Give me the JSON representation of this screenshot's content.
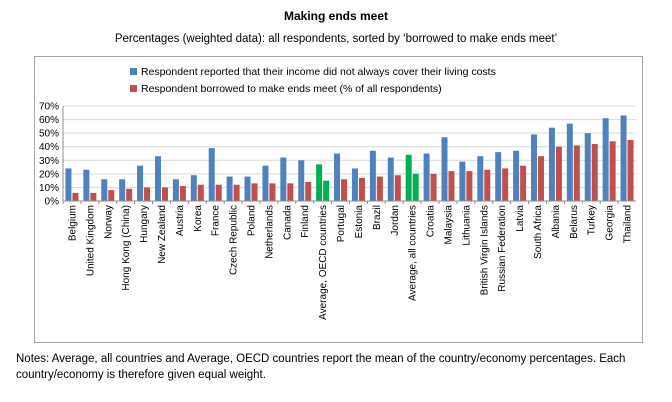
{
  "chart_data": {
    "type": "bar",
    "title": "Making ends meet",
    "subtitle": "Percentages (weighted data): all respondents, sorted by ‘borrowed to make ends meet’",
    "categories": [
      "Belgium",
      "United Kingdom",
      "Norway",
      "Hong Kong (China)",
      "Hungary",
      "New Zealand",
      "Austria",
      "Korea",
      "France",
      "Czech Republic",
      "Poland",
      "Netherlands",
      "Canada",
      "Finland",
      "Average, OECD countries",
      "Portugal",
      "Estonia",
      "Brazil",
      "Jordan",
      "Average, all countries",
      "Croatia",
      "Malaysia",
      "Lithuania",
      "British Virgin Islands",
      "Russian Federation",
      "Latvia",
      "South Africa",
      "Albania",
      "Belarus",
      "Turkey",
      "Georgia",
      "Thailand"
    ],
    "series": [
      {
        "name": "Respondent reported that their income did not always cover their living costs",
        "color": "#4f81bd",
        "values": [
          24,
          23,
          16,
          16,
          26,
          33,
          16,
          19,
          39,
          18,
          18,
          26,
          32,
          30,
          27,
          35,
          24,
          37,
          32,
          34,
          35,
          47,
          29,
          33,
          36,
          37,
          49,
          54,
          57,
          50,
          61,
          63
        ]
      },
      {
        "name": "Respondent borrowed to make ends meet (% of all respondents)",
        "color": "#c0504d",
        "values": [
          6,
          6,
          8,
          9,
          10,
          10,
          11,
          12,
          12,
          12,
          13,
          13,
          13,
          14,
          15,
          16,
          17,
          18,
          19,
          20,
          20,
          22,
          22,
          23,
          24,
          26,
          33,
          40,
          41,
          42,
          44,
          45
        ]
      }
    ],
    "highlight_categories": [
      "Average, OECD countries",
      "Average, all countries"
    ],
    "highlight_color": "#00b050",
    "ylim": [
      0,
      70
    ],
    "yticks": [
      0,
      10,
      20,
      30,
      40,
      50,
      60,
      70
    ],
    "ytick_labels": [
      "0%",
      "10%",
      "20%",
      "30%",
      "40%",
      "50%",
      "60%",
      "70%"
    ],
    "legend_position": "top",
    "grid": true,
    "xlabel": "",
    "ylabel": ""
  },
  "notes": "Notes: Average, all countries and Average, OECD countries report the mean of the country/economy percentages. Each country/economy is therefore given equal weight."
}
